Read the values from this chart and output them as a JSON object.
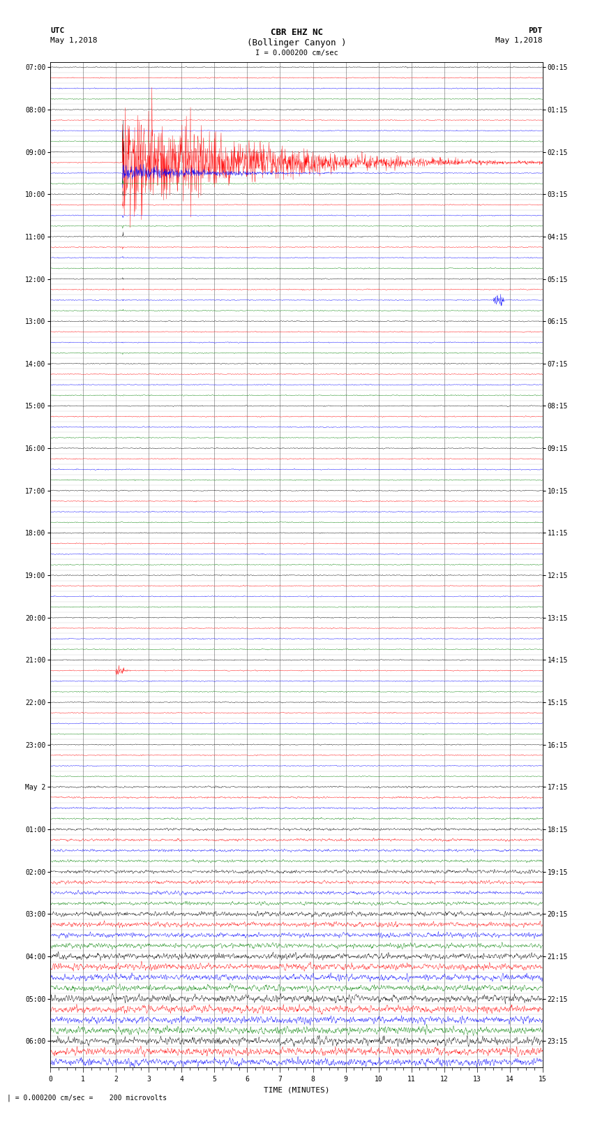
{
  "title_line1": "CBR EHZ NC",
  "title_line2": "(Bollinger Canyon )",
  "scale_label": "I = 0.000200 cm/sec",
  "left_header": "UTC",
  "left_date": "May 1,2018",
  "right_header": "PDT",
  "right_date": "May 1,2018",
  "bottom_label": "TIME (MINUTES)",
  "bottom_note": "= 0.000200 cm/sec =    200 microvolts",
  "xlabel_ticks": [
    0,
    1,
    2,
    3,
    4,
    5,
    6,
    7,
    8,
    9,
    10,
    11,
    12,
    13,
    14,
    15
  ],
  "utc_labels_major": {
    "0": "07:00",
    "4": "08:00",
    "8": "09:00",
    "12": "10:00",
    "16": "11:00",
    "20": "12:00",
    "24": "13:00",
    "28": "14:00",
    "32": "15:00",
    "36": "16:00",
    "40": "17:00",
    "44": "18:00",
    "48": "19:00",
    "52": "20:00",
    "56": "21:00",
    "60": "22:00",
    "64": "23:00",
    "68": "May 2",
    "72": "01:00",
    "76": "02:00",
    "80": "03:00",
    "84": "04:00",
    "88": "05:00",
    "92": "06:00"
  },
  "pdt_labels_major": {
    "0": "00:15",
    "4": "01:15",
    "8": "02:15",
    "12": "03:15",
    "16": "04:15",
    "20": "05:15",
    "24": "06:15",
    "28": "07:15",
    "32": "08:15",
    "36": "09:15",
    "40": "10:15",
    "44": "11:15",
    "48": "12:15",
    "52": "13:15",
    "56": "14:15",
    "60": "15:15",
    "64": "16:15",
    "68": "17:15",
    "72": "18:15",
    "76": "19:15",
    "80": "20:15",
    "84": "21:15",
    "88": "22:15",
    "92": "23:15"
  },
  "n_rows": 95,
  "colors_cycle": [
    "black",
    "red",
    "blue",
    "green"
  ],
  "bg_color": "white",
  "noise_base": 0.035,
  "earthquake_row": 9,
  "earthquake_minute": 2.2,
  "fig_width": 8.5,
  "fig_height": 16.13,
  "dpi": 100
}
